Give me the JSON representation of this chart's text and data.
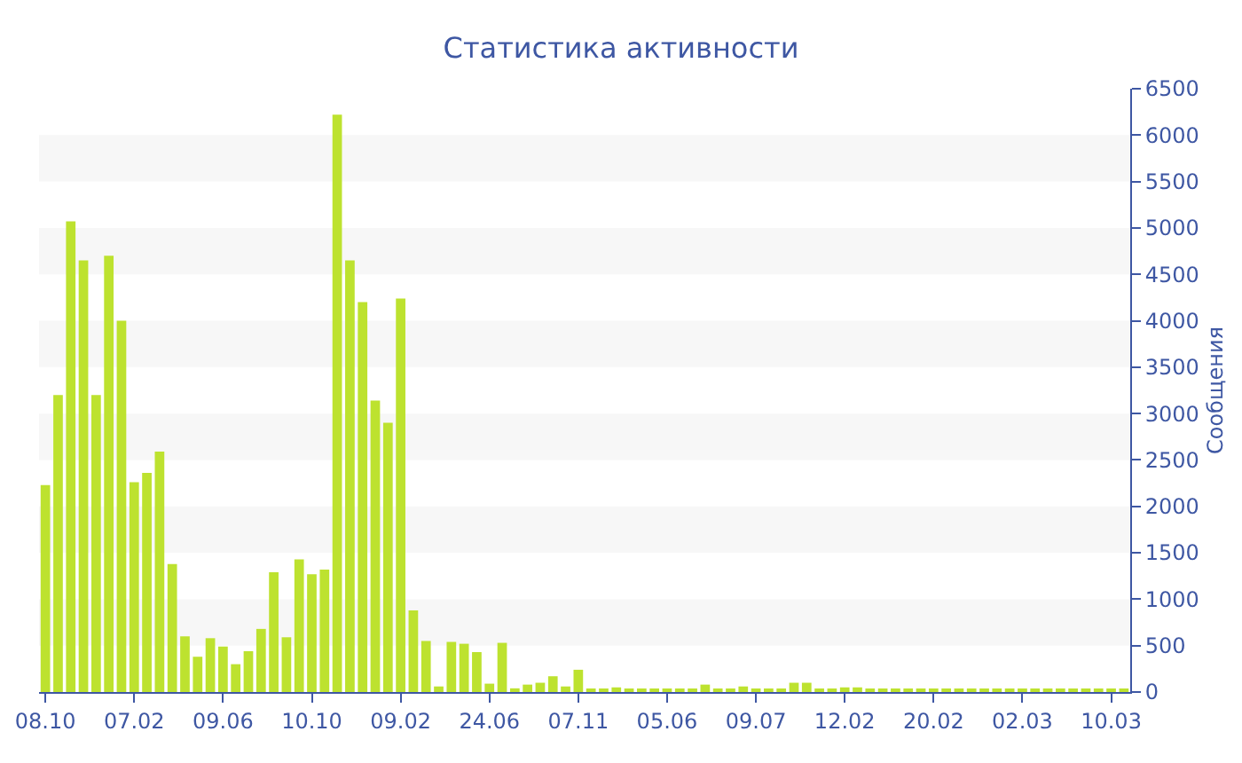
{
  "chart_data": {
    "type": "bar",
    "title": "Статистика активности",
    "ylabel": "Сообщения",
    "color": "#bde22f",
    "categories": [
      "08.10",
      null,
      null,
      null,
      null,
      null,
      null,
      "07.02",
      null,
      null,
      null,
      null,
      null,
      null,
      "09.06",
      null,
      null,
      null,
      null,
      null,
      null,
      "10.10",
      null,
      null,
      null,
      null,
      null,
      null,
      "09.02",
      null,
      null,
      null,
      null,
      null,
      null,
      "24.06",
      null,
      null,
      null,
      null,
      null,
      null,
      "07.11",
      null,
      null,
      null,
      null,
      null,
      null,
      "05.06",
      null,
      null,
      null,
      null,
      null,
      null,
      "09.07",
      null,
      null,
      null,
      null,
      null,
      null,
      "12.02",
      null,
      null,
      null,
      null,
      null,
      null,
      "20.02",
      null,
      null,
      null,
      null,
      null,
      null,
      "02.03",
      null,
      null,
      null,
      null,
      null,
      null,
      "10.03",
      null
    ],
    "values": [
      2230,
      3200,
      5070,
      4650,
      3200,
      4700,
      4000,
      2260,
      2360,
      2590,
      1380,
      600,
      380,
      580,
      490,
      300,
      440,
      680,
      1290,
      590,
      1430,
      1270,
      1320,
      6220,
      4650,
      4200,
      3140,
      2900,
      4240,
      880,
      550,
      60,
      540,
      520,
      430,
      90,
      530,
      40,
      80,
      100,
      170,
      60,
      240,
      30,
      30,
      50,
      30,
      30,
      30,
      30,
      30,
      30,
      80,
      20,
      20,
      60,
      30,
      20,
      20,
      100,
      100,
      30,
      20,
      50,
      50,
      20,
      20,
      20,
      20,
      20,
      20,
      20,
      20,
      20,
      20,
      20,
      20,
      20,
      20,
      20,
      20,
      20,
      20,
      20,
      20,
      20
    ],
    "ylim": [
      0,
      6500
    ],
    "yticks": [
      0,
      500,
      1000,
      1500,
      2000,
      2500,
      3000,
      3500,
      4000,
      4500,
      5000,
      5500,
      6000,
      6500
    ]
  }
}
